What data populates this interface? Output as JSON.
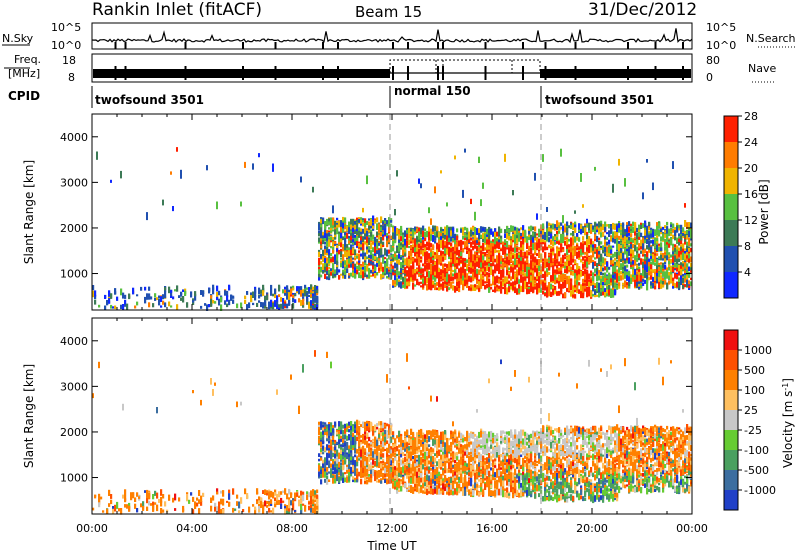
{
  "header": {
    "site": "Rankin Inlet (fitACF)",
    "beam": "Beam 15",
    "date": "31/Dec/2012"
  },
  "strip_labels": {
    "nsky": "N.Sky",
    "nsky_top": "10^5",
    "nsky_bottom": "10^0",
    "nsearch": "N.Search",
    "nsearch_top": "10^5",
    "nsearch_bottom": "10^0",
    "freq_line1": "Freq.",
    "freq_line2": "[MHz]",
    "freq_top": "18",
    "freq_bottom": "8",
    "nave": "Nave",
    "nave_top": "80",
    "nave_bottom": "0",
    "cpid": "CPID"
  },
  "cpid_modes": [
    {
      "label": "twofsound 3501",
      "start_hour": 0,
      "end_hour": 12
    },
    {
      "label": "normal 150",
      "start_hour": 12,
      "end_hour": 18
    },
    {
      "label": "twofsound 3501",
      "start_hour": 18,
      "end_hour": 24
    }
  ],
  "chart_data": [
    {
      "type": "heatmap",
      "panel": "power",
      "xlabel": "",
      "ylabel": "Slant Range [km]",
      "xlim": [
        0,
        24
      ],
      "ylim": [
        200,
        4500
      ],
      "yticks": [
        "1000",
        "2000",
        "3000",
        "4000"
      ],
      "colorbar": {
        "label": "Power [dB]",
        "ticks": [
          "4",
          "8",
          "12",
          "16",
          "20",
          "24",
          "28"
        ],
        "colors": [
          "#1028ff",
          "#2050b0",
          "#3c7a56",
          "#58c040",
          "#f0b400",
          "#ff7c00",
          "#ff2000"
        ]
      }
    },
    {
      "type": "heatmap",
      "panel": "velocity",
      "xlabel": "Time UT",
      "ylabel": "Slant Range [km]",
      "xlim": [
        0,
        24
      ],
      "ylim": [
        200,
        4500
      ],
      "xticks": [
        "00:00",
        "04:00",
        "08:00",
        "12:00",
        "16:00",
        "20:00",
        "00:00"
      ],
      "yticks": [
        "1000",
        "2000",
        "3000",
        "4000"
      ],
      "colorbar": {
        "label": "Velocity [m s^-1]",
        "ticks": [
          "1000",
          "500",
          "100",
          "25",
          "-25",
          "-100",
          "-500",
          "-1000"
        ],
        "colors": [
          "#2040c8",
          "#3c6ea0",
          "#4aa060",
          "#66cc33",
          "#c8c8c8",
          "#ffc060",
          "#ff8000",
          "#ff5000",
          "#f01010"
        ]
      }
    }
  ]
}
